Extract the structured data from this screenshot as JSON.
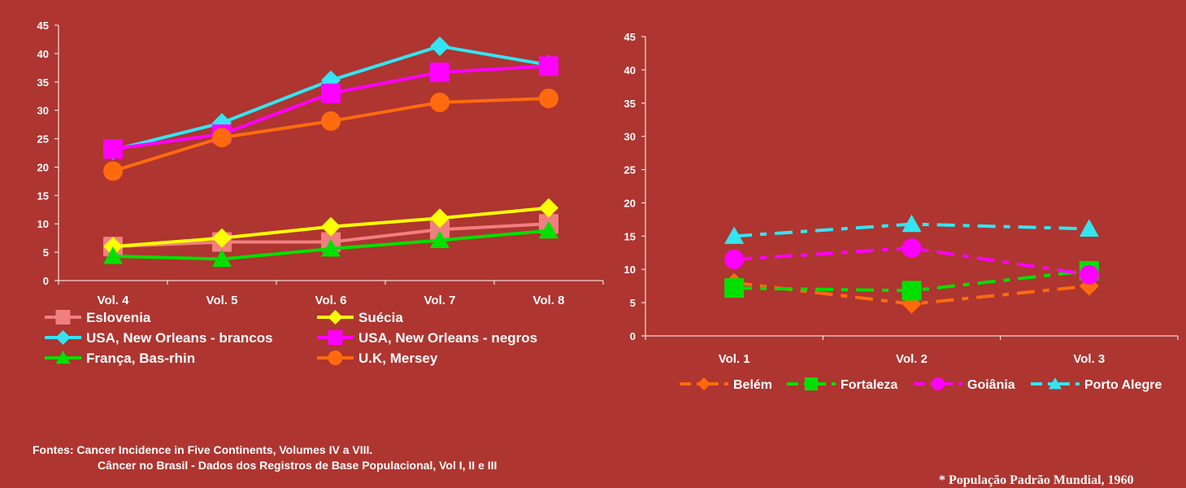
{
  "chart_data": [
    {
      "type": "line",
      "categories": [
        "Vol. 4",
        "Vol. 5",
        "Vol. 6",
        "Vol. 7",
        "Vol. 8"
      ],
      "ylim": [
        0,
        45
      ],
      "yticks": [
        0,
        5,
        10,
        15,
        20,
        25,
        30,
        35,
        40,
        45
      ],
      "grid": false,
      "legend_position": "bottom",
      "series": [
        {
          "name": "Eslovenia",
          "color": "#F08080",
          "marker": "square",
          "dash": "solid",
          "values": [
            6,
            6.8,
            6.8,
            9,
            10
          ]
        },
        {
          "name": "Suécia",
          "color": "#FFFF00",
          "marker": "diamond",
          "dash": "solid",
          "values": [
            6,
            7.5,
            9.5,
            11,
            12.8
          ]
        },
        {
          "name": "USA, New Orleans - brancos",
          "color": "#33E5F2",
          "marker": "diamond",
          "dash": "solid",
          "values": [
            23,
            27.8,
            35.3,
            41.3,
            38
          ]
        },
        {
          "name": "USA, New Orleans - negros",
          "color": "#FF00FF",
          "marker": "square",
          "dash": "solid",
          "values": [
            23.2,
            25.8,
            33,
            36.7,
            37.8
          ]
        },
        {
          "name": "França, Bas-rhin",
          "color": "#00E000",
          "marker": "triangle",
          "dash": "solid",
          "values": [
            4.3,
            3.8,
            5.6,
            7.1,
            8.8
          ]
        },
        {
          "name": "U.K, Mersey",
          "color": "#FF6A0E",
          "marker": "circle",
          "dash": "solid",
          "values": [
            19.3,
            25.2,
            28.1,
            31.4,
            32.1
          ]
        }
      ]
    },
    {
      "type": "line",
      "categories": [
        "Vol. 1",
        "Vol. 2",
        "Vol. 3"
      ],
      "ylim": [
        0,
        45
      ],
      "yticks": [
        0,
        5,
        10,
        15,
        20,
        25,
        30,
        35,
        40,
        45
      ],
      "grid": false,
      "legend_position": "bottom",
      "series": [
        {
          "name": "Belém",
          "color": "#FF6A0E",
          "marker": "diamond",
          "dash": "dashdot",
          "values": [
            8,
            4.8,
            7.5
          ]
        },
        {
          "name": "Fortaleza",
          "color": "#00E000",
          "marker": "square",
          "dash": "dashdot",
          "values": [
            7.2,
            6.8,
            9.8
          ]
        },
        {
          "name": "Goiânia",
          "color": "#FF00FF",
          "marker": "circle",
          "dash": "dashdot",
          "values": [
            11.5,
            13.2,
            9.2
          ]
        },
        {
          "name": "Porto Alegre",
          "color": "#33E5F2",
          "marker": "triangle",
          "dash": "dashdot",
          "values": [
            15,
            16.8,
            16.1
          ]
        }
      ]
    }
  ],
  "sources": {
    "line1": "Fontes: Cancer Incidence in Five Continents, Volumes IV a VIII.",
    "line2": "Câncer no Brasil - Dados dos Registros de Base Populacional, Vol I, II e III"
  },
  "footnote": "* População Padrão Mundial, 1960"
}
